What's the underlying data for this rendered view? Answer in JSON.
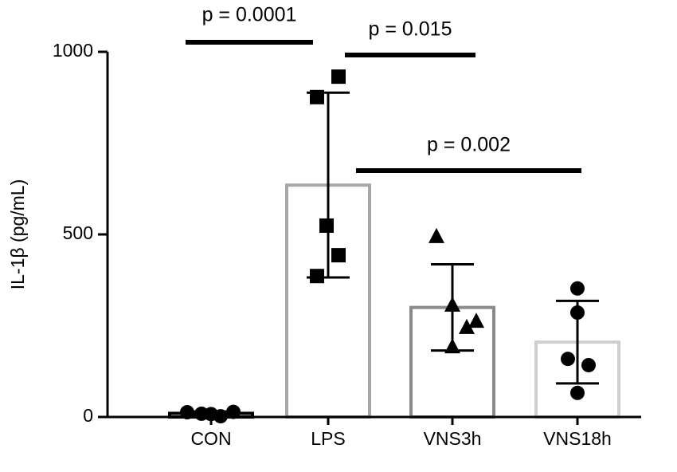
{
  "chart_data": {
    "type": "bar",
    "y_label": "IL-1β (pg/mL)",
    "categories": [
      "CON",
      "LPS",
      "VNS3h",
      "VNS18h"
    ],
    "values": [
      10,
      635,
      300,
      205
    ],
    "errors": [
      5,
      253,
      118,
      113
    ],
    "points": [
      [
        13,
        9,
        8,
        2,
        14
      ],
      [
        932,
        876,
        524,
        443,
        386
      ],
      [
        496,
        308,
        264,
        247,
        194
      ],
      [
        352,
        286,
        159,
        142,
        66
      ]
    ],
    "markers": [
      "circle",
      "square",
      "triangle",
      "circle"
    ],
    "colors": [
      "#000000",
      "#a8a8a8",
      "#8a8a8a",
      "#cfcfcf"
    ],
    "point_color": "#000000",
    "ylim": [
      0,
      1000
    ],
    "yticks": [
      0,
      500,
      1000
    ],
    "annotations": [
      "p = 0.0001",
      "p = 0.015",
      "p = 0.002"
    ]
  }
}
